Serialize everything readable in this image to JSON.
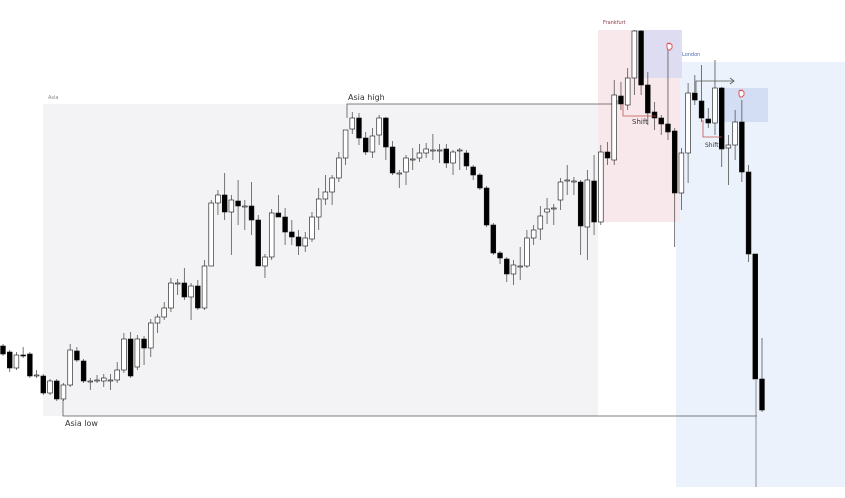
{
  "chart_data": {
    "type": "candlestick",
    "title": "",
    "xlabel": "",
    "ylabel": "",
    "axes_visible": false,
    "grid": false,
    "colors": {
      "bullish_body": "#ffffff",
      "bearish_body": "#000000",
      "wick": "#555555",
      "asia_session": "#f3f3f5",
      "frankfurt_session": "#f8e8ec",
      "frankfurt_highlight": "#d9d9f1",
      "london_session": "#ebf2fb",
      "london_highlight": "#d3def4",
      "shift_line": "#c0504d",
      "level_line": "#555555",
      "hand_icon": "#e0464e"
    },
    "sessions": [
      {
        "name": "Asia",
        "label": "Asia"
      },
      {
        "name": "Frankfurt",
        "label": "Frankfurt"
      },
      {
        "name": "London",
        "label": "London"
      }
    ],
    "levels": {
      "asia_high": "Asia high",
      "asia_low": "Asia low"
    },
    "annotations": [
      "Shift",
      "Shift"
    ],
    "icons": [
      "hand-pointer-icon",
      "hand-pointer-icon",
      "arrow-right-icon"
    ],
    "candles_ohlc": [
      [
        154,
        156,
        144,
        146
      ],
      [
        148,
        150,
        128,
        132
      ],
      [
        132,
        148,
        130,
        145
      ],
      [
        145,
        153,
        142,
        144
      ],
      [
        146,
        148,
        122,
        124
      ],
      [
        124,
        130,
        122,
        125
      ],
      [
        124,
        126,
        105,
        107
      ],
      [
        107,
        121,
        105,
        119
      ],
      [
        119,
        121,
        99,
        101
      ],
      [
        101,
        117,
        99,
        115
      ],
      [
        115,
        156,
        113,
        150
      ],
      [
        149,
        153,
        138,
        140
      ],
      [
        139,
        141,
        117,
        119
      ],
      [
        119,
        122,
        110,
        119
      ],
      [
        119,
        125,
        117,
        120
      ],
      [
        119,
        126,
        113,
        122
      ],
      [
        120,
        126,
        110,
        120
      ],
      [
        120,
        138,
        117,
        130
      ],
      [
        130,
        167,
        127,
        161
      ],
      [
        161,
        168,
        122,
        124
      ],
      [
        133,
        165,
        130,
        161
      ],
      [
        161,
        164,
        135,
        152
      ],
      [
        152,
        181,
        143,
        177
      ],
      [
        177,
        186,
        167,
        183
      ],
      [
        183,
        198,
        180,
        192
      ],
      [
        192,
        222,
        188,
        217
      ],
      [
        217,
        221,
        205,
        217
      ],
      [
        217,
        232,
        200,
        203
      ],
      [
        203,
        217,
        180,
        214
      ],
      [
        214,
        220,
        190,
        192
      ],
      [
        192,
        240,
        190,
        234
      ],
      [
        234,
        300,
        234,
        297
      ],
      [
        297,
        310,
        285,
        305
      ],
      [
        305,
        327,
        280,
        288
      ],
      [
        288,
        305,
        245,
        300
      ],
      [
        299,
        320,
        275,
        294
      ],
      [
        294,
        300,
        270,
        294
      ],
      [
        294,
        318,
        265,
        280
      ],
      [
        280,
        285,
        234,
        234
      ],
      [
        234,
        246,
        222,
        243
      ],
      [
        243,
        291,
        240,
        287
      ],
      [
        287,
        305,
        283,
        283
      ],
      [
        283,
        292,
        255,
        268
      ],
      [
        268,
        280,
        255,
        263
      ],
      [
        263,
        270,
        245,
        254
      ],
      [
        254,
        268,
        248,
        262
      ],
      [
        261,
        288,
        258,
        283
      ],
      [
        283,
        312,
        270,
        301
      ],
      [
        301,
        325,
        295,
        308
      ],
      [
        308,
        325,
        295,
        322
      ],
      [
        322,
        348,
        318,
        342
      ],
      [
        342,
        370,
        335,
        370
      ],
      [
        371,
        388,
        366,
        382
      ],
      [
        382,
        387,
        355,
        362
      ],
      [
        362,
        368,
        345,
        348
      ],
      [
        348,
        372,
        342,
        364
      ],
      [
        365,
        385,
        355,
        382
      ],
      [
        382,
        383,
        340,
        353
      ],
      [
        353,
        359,
        325,
        327
      ],
      [
        327,
        330,
        312,
        327
      ],
      [
        328,
        345,
        315,
        342
      ],
      [
        341,
        352,
        330,
        341
      ],
      [
        342,
        356,
        338,
        347
      ],
      [
        347,
        357,
        342,
        351
      ],
      [
        350,
        366,
        340,
        350
      ],
      [
        350,
        356,
        337,
        350
      ],
      [
        351,
        356,
        332,
        337
      ],
      [
        337,
        350,
        325,
        348
      ],
      [
        350,
        352,
        330,
        350
      ],
      [
        347,
        350,
        330,
        334
      ],
      [
        333,
        335,
        320,
        325
      ],
      [
        325,
        327,
        310,
        312
      ],
      [
        312,
        314,
        273,
        275
      ],
      [
        275,
        277,
        245,
        247
      ],
      [
        247,
        249,
        236,
        242
      ],
      [
        241,
        243,
        218,
        226
      ],
      [
        226,
        240,
        215,
        235
      ],
      [
        234,
        253,
        220,
        234
      ],
      [
        234,
        270,
        232,
        262
      ],
      [
        262,
        275,
        255,
        270
      ],
      [
        271,
        294,
        260,
        284
      ],
      [
        288,
        302,
        276,
        291
      ],
      [
        292,
        296,
        275,
        292
      ],
      [
        300,
        322,
        290,
        318
      ],
      [
        320,
        335,
        305,
        320
      ],
      [
        319,
        323,
        305,
        319
      ],
      [
        318,
        320,
        245,
        274
      ],
      [
        273,
        330,
        240,
        320
      ],
      [
        319,
        345,
        265,
        278
      ],
      [
        278,
        355,
        275,
        348
      ],
      [
        348,
        358,
        335,
        342
      ],
      [
        340,
        420,
        335,
        405
      ],
      [
        404,
        418,
        390,
        396
      ],
      [
        395,
        432,
        390,
        422
      ],
      [
        422,
        470,
        405,
        469
      ],
      [
        469,
        470,
        405,
        415
      ],
      [
        415,
        428,
        375,
        387
      ],
      [
        388,
        398,
        370,
        382
      ],
      [
        382,
        385,
        365,
        376
      ],
      [
        376,
        455,
        360,
        368
      ],
      [
        369,
        372,
        253,
        307
      ],
      [
        307,
        352,
        290,
        347
      ],
      [
        347,
        417,
        317,
        407
      ],
      [
        407,
        425,
        395,
        400
      ],
      [
        399,
        435,
        378,
        382
      ],
      [
        381,
        392,
        372,
        377
      ],
      [
        377,
        440,
        365,
        412
      ],
      [
        412,
        413,
        333,
        351
      ],
      [
        352,
        365,
        315,
        355
      ],
      [
        355,
        390,
        340,
        378
      ],
      [
        378,
        400,
        318,
        328
      ],
      [
        328,
        335,
        238,
        246
      ],
      [
        246,
        246,
        121,
        121
      ],
      [
        121,
        162,
        88,
        90
      ]
    ]
  }
}
